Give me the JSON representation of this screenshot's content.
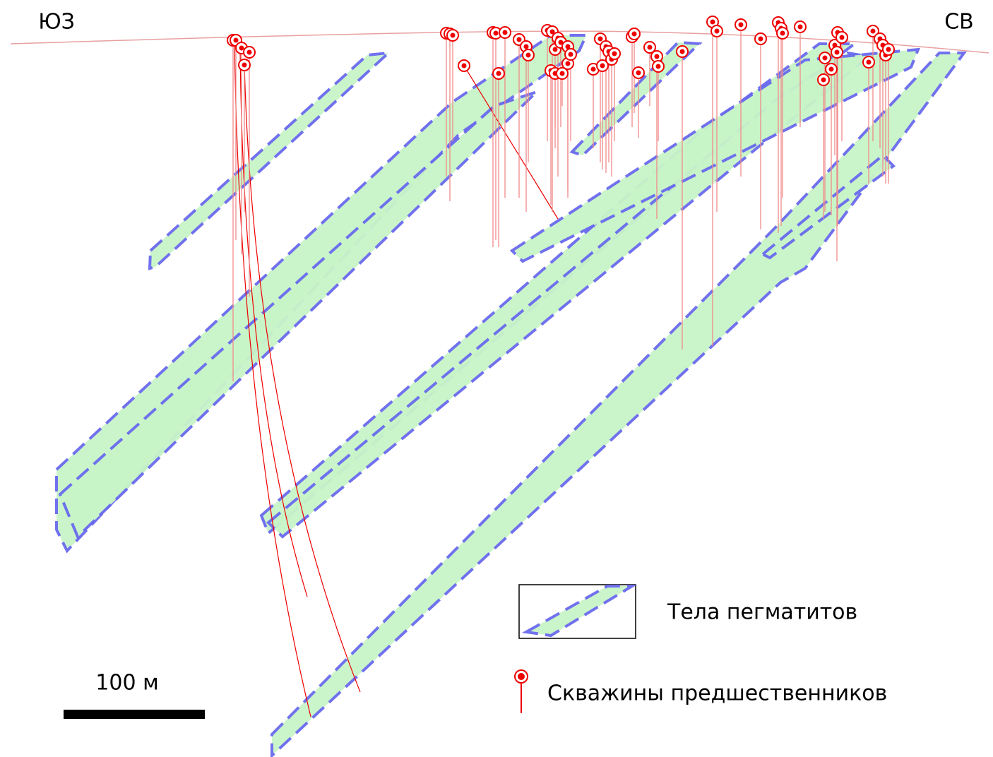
{
  "labels": {
    "left": "ЮЗ",
    "right": "СВ"
  },
  "legend": [
    {
      "label": "Тела пегматитов"
    },
    {
      "label": "Скважины предшественников"
    }
  ],
  "scale_bar": {
    "label": "100 м"
  }
}
